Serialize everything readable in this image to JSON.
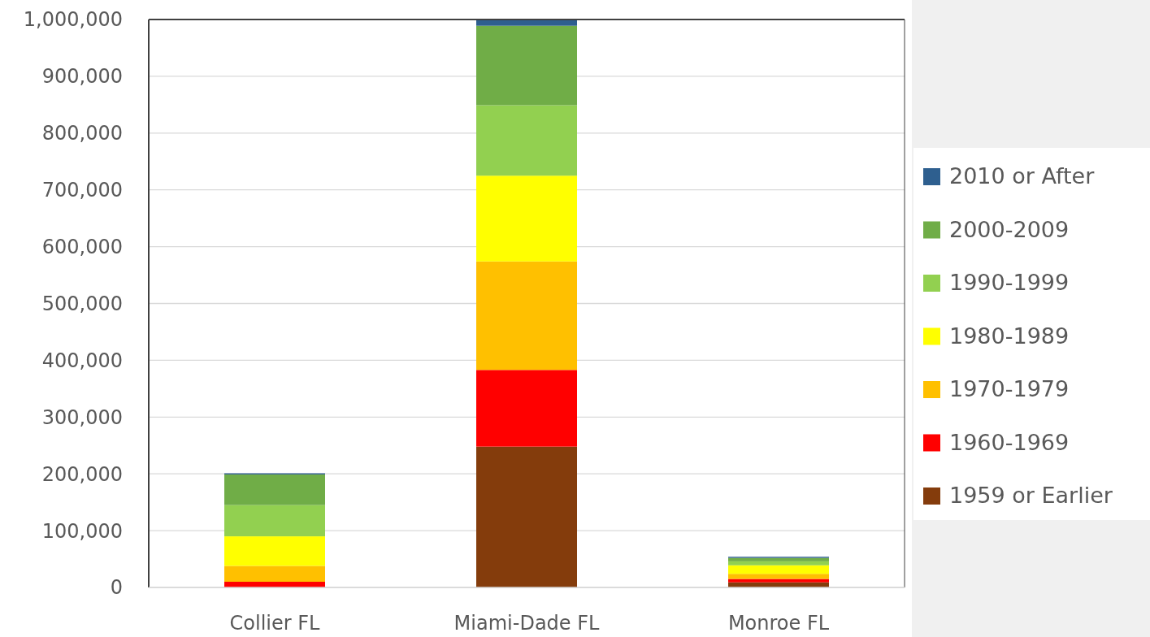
{
  "chart_data": {
    "type": "bar",
    "stacked": true,
    "categories": [
      "Collier FL",
      "Miami-Dade FL",
      "Monroe FL"
    ],
    "series": [
      {
        "name": "1959 or Earlier",
        "color": "#843c0c",
        "values": [
          null,
          248000,
          9000
        ]
      },
      {
        "name": "1960-1969",
        "color": "#ff0000",
        "values": [
          10000,
          135000,
          6000
        ]
      },
      {
        "name": "1970-1979",
        "color": "#ffc000",
        "values": [
          28000,
          191000,
          9000
        ]
      },
      {
        "name": "1980-1989",
        "color": "#ffff00",
        "values": [
          52000,
          151000,
          15000
        ]
      },
      {
        "name": "1990-1999",
        "color": "#92d050",
        "values": [
          55000,
          124000,
          7000
        ]
      },
      {
        "name": "2000-2009",
        "color": "#70ad47",
        "values": [
          54000,
          140000,
          6000
        ]
      },
      {
        "name": "2010 or After",
        "color": "#2e5f8f",
        "values": [
          2000,
          10000,
          2000
        ]
      }
    ],
    "ylim": [
      0,
      1000000
    ],
    "yticks": [
      {
        "value": 0,
        "label": "0"
      },
      {
        "value": 100000,
        "label": "100,000"
      },
      {
        "value": 200000,
        "label": "200,000"
      },
      {
        "value": 300000,
        "label": "300,000"
      },
      {
        "value": 400000,
        "label": "400,000"
      },
      {
        "value": 500000,
        "label": "500,000"
      },
      {
        "value": 600000,
        "label": "600,000"
      },
      {
        "value": 700000,
        "label": "700,000"
      },
      {
        "value": 800000,
        "label": "800,000"
      },
      {
        "value": 900000,
        "label": "900,000"
      },
      {
        "value": 1000000,
        "label": "1,000,000"
      }
    ],
    "grid": "y",
    "legend": "right"
  }
}
